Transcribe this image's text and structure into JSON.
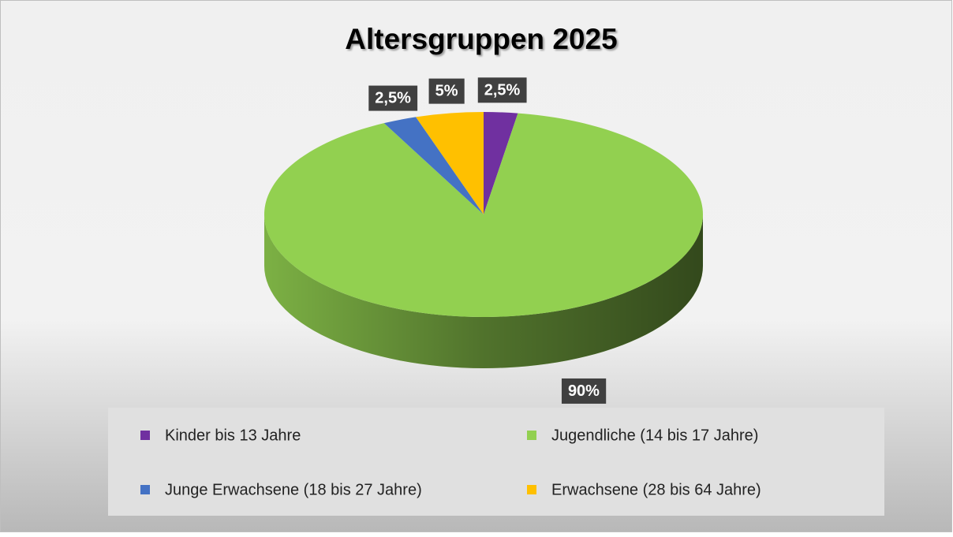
{
  "chart_data": {
    "type": "pie",
    "title": "Altersgruppen 2025",
    "categories": [
      "Kinder bis 13 Jahre",
      "Jugendliche (14 bis 17 Jahre)",
      "Junge Erwachsene (18 bis 27 Jahre)",
      "Erwachsene (28 bis 64 Jahre)"
    ],
    "values": [
      2.5,
      90,
      2.5,
      5
    ],
    "value_labels": [
      "2,5%",
      "90%",
      "2,5%",
      "5%"
    ],
    "colors": [
      "#7030a0",
      "#92d050",
      "#4472c4",
      "#ffc000"
    ],
    "legend": "bottom"
  }
}
